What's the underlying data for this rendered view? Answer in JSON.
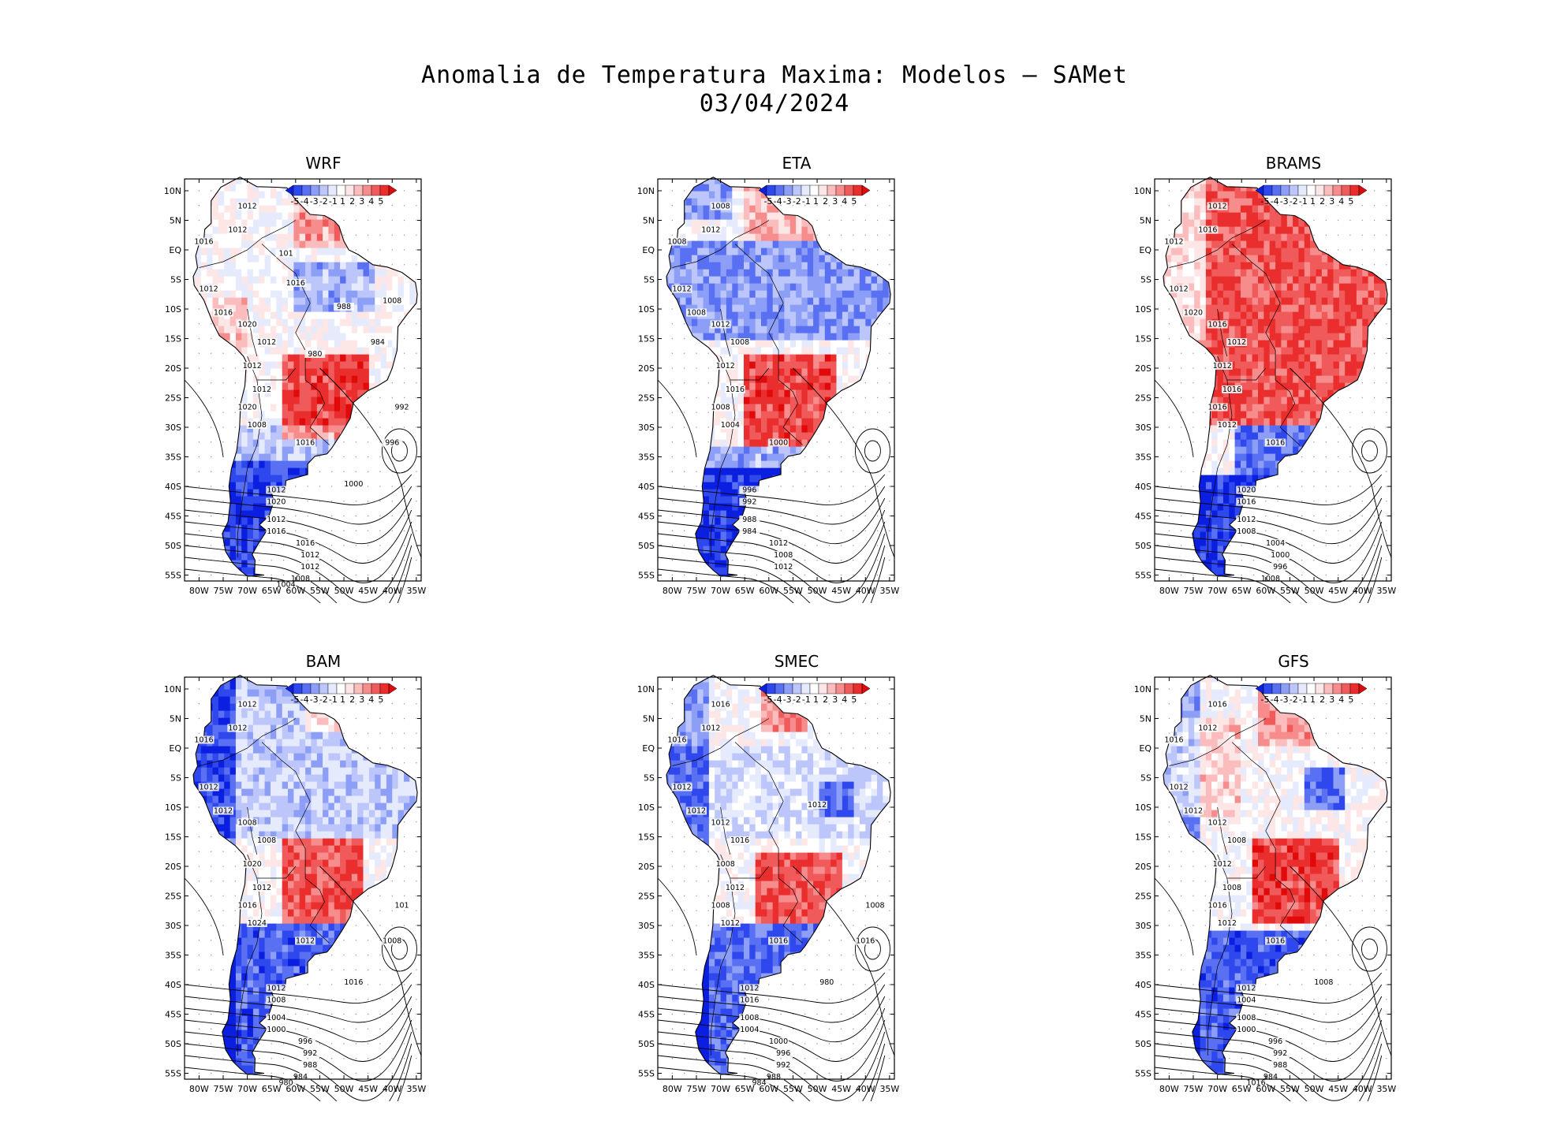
{
  "title_line1": "Anomalia de Temperatura Maxima: Modelos – SAMet",
  "title_line2": "03/04/2024",
  "chart_data": {
    "type": "heatmap",
    "variable": "Anomalia de Temperatura Maxima",
    "date": "03/04/2024",
    "lat_ticks": [
      "10N",
      "5N",
      "EQ",
      "5S",
      "10S",
      "15S",
      "20S",
      "25S",
      "30S",
      "35S",
      "40S",
      "45S",
      "50S",
      "55S"
    ],
    "lon_ticks": [
      "80W",
      "75W",
      "70W",
      "65W",
      "60W",
      "55W",
      "50W",
      "45W",
      "40W",
      "35W"
    ],
    "lat_range": [
      -56,
      12
    ],
    "lon_range": [
      -83,
      -34
    ],
    "colorbar": {
      "labels": [
        "-5",
        "-4",
        "-3",
        "-2",
        "-1",
        "1",
        "2",
        "3",
        "4",
        "5"
      ],
      "colors": [
        "#0a1fe0",
        "#2e48ee",
        "#5a70f2",
        "#8c9ef6",
        "#bcc6fa",
        "#e6eafd",
        "#ffffff",
        "#fde6e6",
        "#fabcbc",
        "#f68c8c",
        "#f05a5a",
        "#ea2e2e",
        "#e00a0a"
      ]
    },
    "panels": [
      {
        "name": "WRF",
        "labels": [
          "1012",
          "1012",
          "1016",
          "1012",
          "1016",
          "1020",
          "1012",
          "1012",
          "1012",
          "1020",
          "1008",
          "1016",
          "1012",
          "1020",
          "1012",
          "1016",
          "1016",
          "1012",
          "1012",
          "1008",
          "1004",
          "1000",
          "996",
          "992",
          "988",
          "984",
          "980",
          "1016",
          "1008",
          "101"
        ]
      },
      {
        "name": "ETA",
        "labels": [
          "1012",
          "1008",
          "1008",
          "1012",
          "1008",
          "1012",
          "1008",
          "1012",
          "1016",
          "1008",
          "1004",
          "1000",
          "996",
          "992",
          "988",
          "984",
          "1012",
          "1008",
          "1012"
        ]
      },
      {
        "name": "BRAMS",
        "labels": [
          "1016",
          "1012",
          "1012",
          "1012",
          "1020",
          "1016",
          "1012",
          "1012",
          "1016",
          "1016",
          "1012",
          "1016",
          "1020",
          "1016",
          "1012",
          "1008",
          "1004",
          "1000",
          "996",
          "1008"
        ]
      },
      {
        "name": "BAM",
        "labels": [
          "1012",
          "1012",
          "1016",
          "1012",
          "1012",
          "1008",
          "1008",
          "1020",
          "1012",
          "1016",
          "1024",
          "1012",
          "1012",
          "1008",
          "1004",
          "1000",
          "996",
          "992",
          "988",
          "984",
          "980",
          "1016",
          "1008",
          "101"
        ]
      },
      {
        "name": "SMEC",
        "labels": [
          "1012",
          "1016",
          "1016",
          "1012",
          "1012",
          "1012",
          "1016",
          "1008",
          "1012",
          "1008",
          "1012",
          "1016",
          "1012",
          "1016",
          "1008",
          "1004",
          "1000",
          "996",
          "992",
          "988",
          "984",
          "980",
          "1016",
          "1008",
          "1012"
        ]
      },
      {
        "name": "GFS",
        "labels": [
          "1012",
          "1016",
          "1016",
          "1012",
          "1012",
          "1012",
          "1008",
          "1012",
          "1008",
          "1016",
          "1012",
          "1016",
          "1012",
          "1004",
          "1008",
          "1000",
          "996",
          "992",
          "988",
          "984",
          "1016",
          "1008"
        ]
      }
    ]
  }
}
